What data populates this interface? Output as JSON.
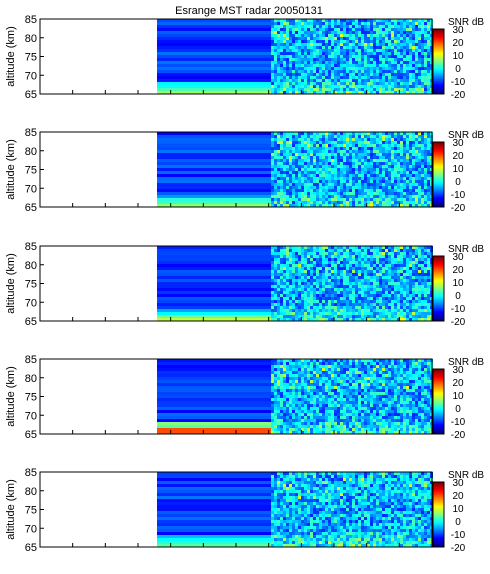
{
  "chart_data": {
    "type": "heatmap",
    "title": "Esrange MST radar 20050131",
    "panels": [
      {
        "ylabel": "altitude (km)",
        "ylim": [
          65,
          85
        ],
        "yticks": [
          65,
          70,
          75,
          80,
          85
        ]
      },
      {
        "ylabel": "altitude (km)",
        "ylim": [
          65,
          85
        ],
        "yticks": [
          65,
          70,
          75,
          80,
          85
        ]
      },
      {
        "ylabel": "altitude (km)",
        "ylim": [
          65,
          85
        ],
        "yticks": [
          65,
          70,
          75,
          80,
          85
        ]
      },
      {
        "ylabel": "altitude (km)",
        "ylim": [
          65,
          85
        ],
        "yticks": [
          65,
          70,
          75,
          80,
          85
        ]
      },
      {
        "ylabel": "altitude (km)",
        "ylim": [
          65,
          85
        ],
        "yticks": [
          65,
          70,
          75,
          80,
          85
        ]
      }
    ],
    "colorbar": {
      "label": "SNR dB",
      "range": [
        -20,
        30
      ],
      "ticks": [
        -20,
        -10,
        0,
        10,
        20,
        30
      ],
      "colormap": "jet"
    },
    "grid": false
  }
}
